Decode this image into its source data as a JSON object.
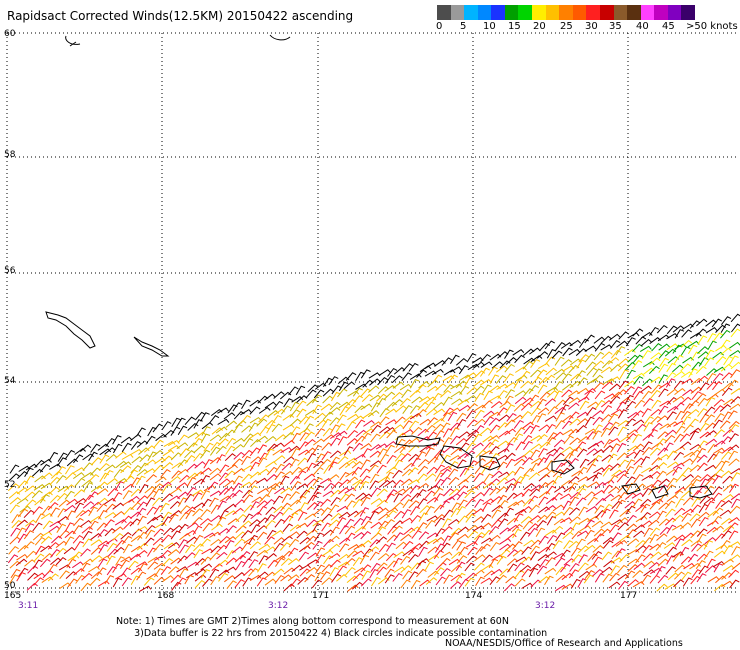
{
  "title": "Rapidsact Corrected Winds(12.5KM) 20150422 ascending",
  "colors": {
    "scale": [
      "#4d4d4d",
      "#9a9a9a",
      "#00b4ff",
      "#0088ff",
      "#1a33ff",
      "#00a000",
      "#00d400",
      "#ffee00",
      "#ffc000",
      "#ff8000",
      "#ff5a00",
      "#ff2020",
      "#c80000",
      "#8b5a2b",
      "#5a3010",
      "#ff40ff",
      "#c000c0",
      "#8000c0",
      "#3a006a"
    ],
    "coast": "#000000",
    "grid": "#000000",
    "time_label": "#6a1ca8"
  },
  "scale_labels": [
    "0",
    "5",
    "10",
    "15",
    "20",
    "25",
    "30",
    "35",
    "40",
    "45",
    ">50 knots"
  ],
  "latitudes": [
    "60",
    "58",
    "56",
    "54",
    "52",
    "50"
  ],
  "longitudes": [
    "165",
    "168",
    "171",
    "174",
    "177"
  ],
  "times": [
    "3:11",
    "3:12",
    "3:12"
  ],
  "note_line1": "Note: 1) Times are GMT 2)Times along bottom correspond to measurement at 60N",
  "note_line2": "      3)Data buffer is 22 hrs from 20150422 4) Black circles indicate possible contamination",
  "credit": "NOAA/NESDIS/Office of Research and Applications"
}
